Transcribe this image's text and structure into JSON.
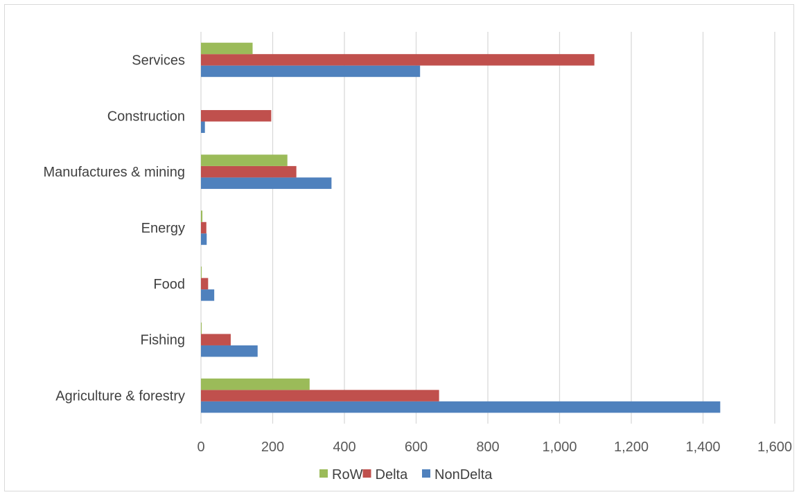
{
  "chart_data": {
    "type": "bar",
    "orientation": "horizontal",
    "categories": [
      "Agriculture & forestry",
      "Fishing",
      "Food",
      "Energy",
      "Manufactures & mining",
      "Construction",
      "Services"
    ],
    "series": [
      {
        "name": "NonDelta",
        "color": "#4f81bd",
        "values": [
          1448,
          158,
          37,
          16,
          364,
          11,
          611
        ]
      },
      {
        "name": "Delta",
        "color": "#c0504d",
        "values": [
          664,
          83,
          20,
          15,
          266,
          196,
          1097
        ]
      },
      {
        "name": "RoW",
        "color": "#9bbb59",
        "values": [
          303,
          2,
          2,
          4,
          241,
          0,
          144
        ]
      }
    ],
    "x_ticks": [
      "0",
      "200",
      "400",
      "600",
      "800",
      "1,000",
      "1,200",
      "1,400",
      "1,600"
    ],
    "xlim": [
      0,
      1600
    ],
    "grid": "vertical",
    "legend_position": "bottom",
    "legend_order": [
      "RoW",
      "Delta",
      "NonDelta"
    ],
    "title": "",
    "xlabel": "",
    "ylabel": ""
  }
}
